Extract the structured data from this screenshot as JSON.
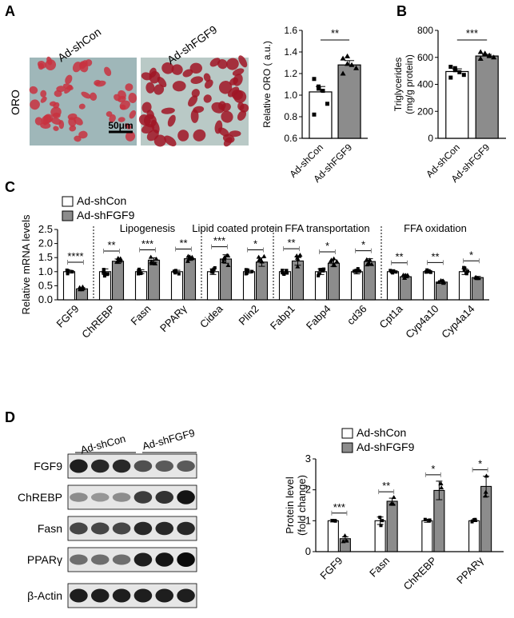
{
  "panels": {
    "A": "A",
    "B": "B",
    "C": "C",
    "D": "D"
  },
  "colors": {
    "con": "#ffffff",
    "sh": "#8c8c8c",
    "stroke": "#000000",
    "oro_bg": "#9fb7b9",
    "oro_cell": "#c8323f",
    "oro_cell_dark": "#a01525"
  },
  "groups": {
    "con": "Ad-shCon",
    "sh": "Ad-shFGF9"
  },
  "panelA": {
    "image_labels": [
      "Ad-shCon",
      "Ad-shFGF9"
    ],
    "row_label": "ORO",
    "scale_bar": "50μm"
  },
  "chart_data": [
    {
      "id": "A",
      "type": "bar",
      "categories": [
        "Ad-shCon",
        "Ad-shFGF9"
      ],
      "values": [
        1.03,
        1.28
      ],
      "errors": [
        0.05,
        0.04
      ],
      "points": [
        [
          1.15,
          1.08,
          1.04,
          0.92,
          0.82,
          1.06
        ],
        [
          1.34,
          1.29,
          1.28,
          1.25,
          1.2,
          1.36
        ]
      ],
      "ylabel": "Relative ORO ( a.u.)",
      "ylim": [
        0.6,
        1.6
      ],
      "yticks": [
        "0.6",
        "0.8",
        "1.0",
        "1.2",
        "1.4",
        "1.6"
      ],
      "significance": [
        "**"
      ]
    },
    {
      "id": "B",
      "type": "bar",
      "categories": [
        "Ad-shCon",
        "Ad-shFGF9"
      ],
      "values": [
        495,
        610
      ],
      "errors": [
        20,
        12
      ],
      "points": [
        [
          530,
          505,
          490,
          470,
          450,
          520
        ],
        [
          640,
          625,
          610,
          600,
          590,
          630,
          615
        ]
      ],
      "ylabel": "Triglycerides",
      "ylabel2": "(mg/g protein)",
      "ylim": [
        0,
        800
      ],
      "yticks": [
        "0",
        "200",
        "400",
        "600",
        "800"
      ],
      "significance": [
        "***"
      ]
    },
    {
      "id": "C",
      "type": "bar",
      "legend": [
        "Ad-shCon",
        "Ad-shFGF9"
      ],
      "ylabel": "Relative mRNA levels",
      "ylim": [
        0,
        2.5
      ],
      "yticks": [
        "0.0",
        "0.5",
        "1.0",
        "1.5",
        "2.0",
        "2.5"
      ],
      "categories": [
        "FGF9",
        "ChREBP",
        "Fasn",
        "PPARγ",
        "Cidea",
        "Plin2",
        "Fabp1",
        "Fabp4",
        "cd36",
        "Cpt1a",
        "Cyp4a10",
        "Cyp4a14"
      ],
      "sections": [
        "Lipogenesis",
        "Lipid coated protein",
        "FFA transportation",
        "FFA oxidation"
      ],
      "series": [
        {
          "name": "Ad-shCon",
          "values": [
            1.0,
            1.0,
            1.0,
            1.0,
            1.0,
            1.0,
            1.0,
            1.0,
            1.0,
            1.0,
            1.0,
            1.0
          ],
          "errors": [
            0.05,
            0.1,
            0.07,
            0.05,
            0.1,
            0.05,
            0.08,
            0.1,
            0.08,
            0.03,
            0.04,
            0.1
          ]
        },
        {
          "name": "Ad-shFGF9",
          "values": [
            0.39,
            1.37,
            1.41,
            1.46,
            1.45,
            1.34,
            1.38,
            1.3,
            1.36,
            0.82,
            0.63,
            0.79
          ],
          "errors": [
            0.04,
            0.08,
            0.08,
            0.06,
            0.15,
            0.15,
            0.15,
            0.12,
            0.1,
            0.04,
            0.05,
            0.04
          ]
        }
      ],
      "significance": [
        "****",
        "**",
        "***",
        "**",
        "***",
        "*",
        "**",
        "*",
        "*",
        "**",
        "**",
        "*"
      ]
    },
    {
      "id": "D",
      "type": "bar",
      "legend": [
        "Ad-shCon",
        "Ad-shFGF9"
      ],
      "ylabel": "Protein level",
      "ylabel2": "(fold change)",
      "ylim": [
        0,
        3
      ],
      "yticks": [
        "0",
        "1",
        "2",
        "3"
      ],
      "categories": [
        "FGF9",
        "Fasn",
        "ChREBP",
        "PPARγ"
      ],
      "series": [
        {
          "name": "Ad-shCon",
          "values": [
            1.0,
            1.0,
            1.0,
            1.0
          ],
          "errors": [
            0.04,
            0.12,
            0.05,
            0.03
          ]
        },
        {
          "name": "Ad-shFGF9",
          "values": [
            0.42,
            1.63,
            1.98,
            2.11
          ],
          "errors": [
            0.06,
            0.1,
            0.3,
            0.33
          ]
        }
      ],
      "significance": [
        "***",
        "**",
        "*",
        "*"
      ]
    }
  ],
  "blot": {
    "header": [
      "Ad-shCon",
      "Ad-shFGF9"
    ],
    "proteins": [
      "FGF9",
      "ChREBP",
      "Fasn",
      "PPARγ",
      "β-Actin"
    ],
    "intensity": [
      [
        0.9,
        0.85,
        0.85,
        0.65,
        0.6,
        0.6
      ],
      [
        0.35,
        0.3,
        0.35,
        0.75,
        0.8,
        0.95
      ],
      [
        0.7,
        0.7,
        0.7,
        0.85,
        0.85,
        0.85
      ],
      [
        0.5,
        0.5,
        0.5,
        0.9,
        0.95,
        1.0
      ],
      [
        0.9,
        0.9,
        0.9,
        0.9,
        0.9,
        0.9
      ]
    ]
  }
}
